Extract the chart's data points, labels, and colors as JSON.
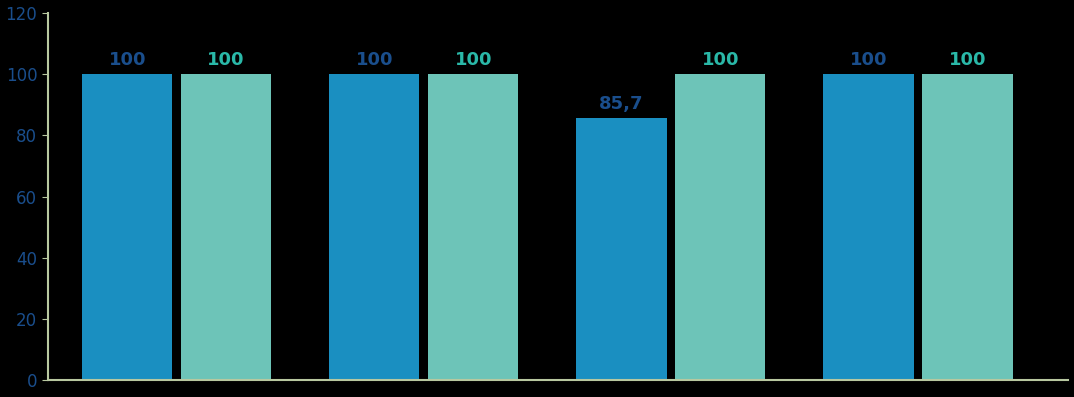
{
  "groups": [
    {
      "bars": [
        100,
        100
      ]
    },
    {
      "bars": [
        100,
        100
      ]
    },
    {
      "bars": [
        85.7,
        100
      ]
    },
    {
      "bars": [
        100,
        100
      ]
    }
  ],
  "bar_label_texts": [
    [
      "100",
      "100"
    ],
    [
      "100",
      "100"
    ],
    [
      "85,7",
      "100"
    ],
    [
      "100",
      "100"
    ]
  ],
  "bar_color_1": "#1a8fc1",
  "bar_color_2": "#6dc4b8",
  "bar_label_color_1": "#1a4e8c",
  "bar_label_color_2": "#2ab8a8",
  "ylim": [
    0,
    120
  ],
  "yticks": [
    0,
    20,
    40,
    60,
    80,
    100,
    120
  ],
  "ytick_color": "#1a4e8c",
  "axis_color": "#b8c8a0",
  "background_color": "#000000",
  "bar_width": 0.42,
  "group_centers": [
    0.5,
    1.65,
    2.8,
    3.95
  ],
  "font_size_labels": 13,
  "font_size_ticks": 12
}
